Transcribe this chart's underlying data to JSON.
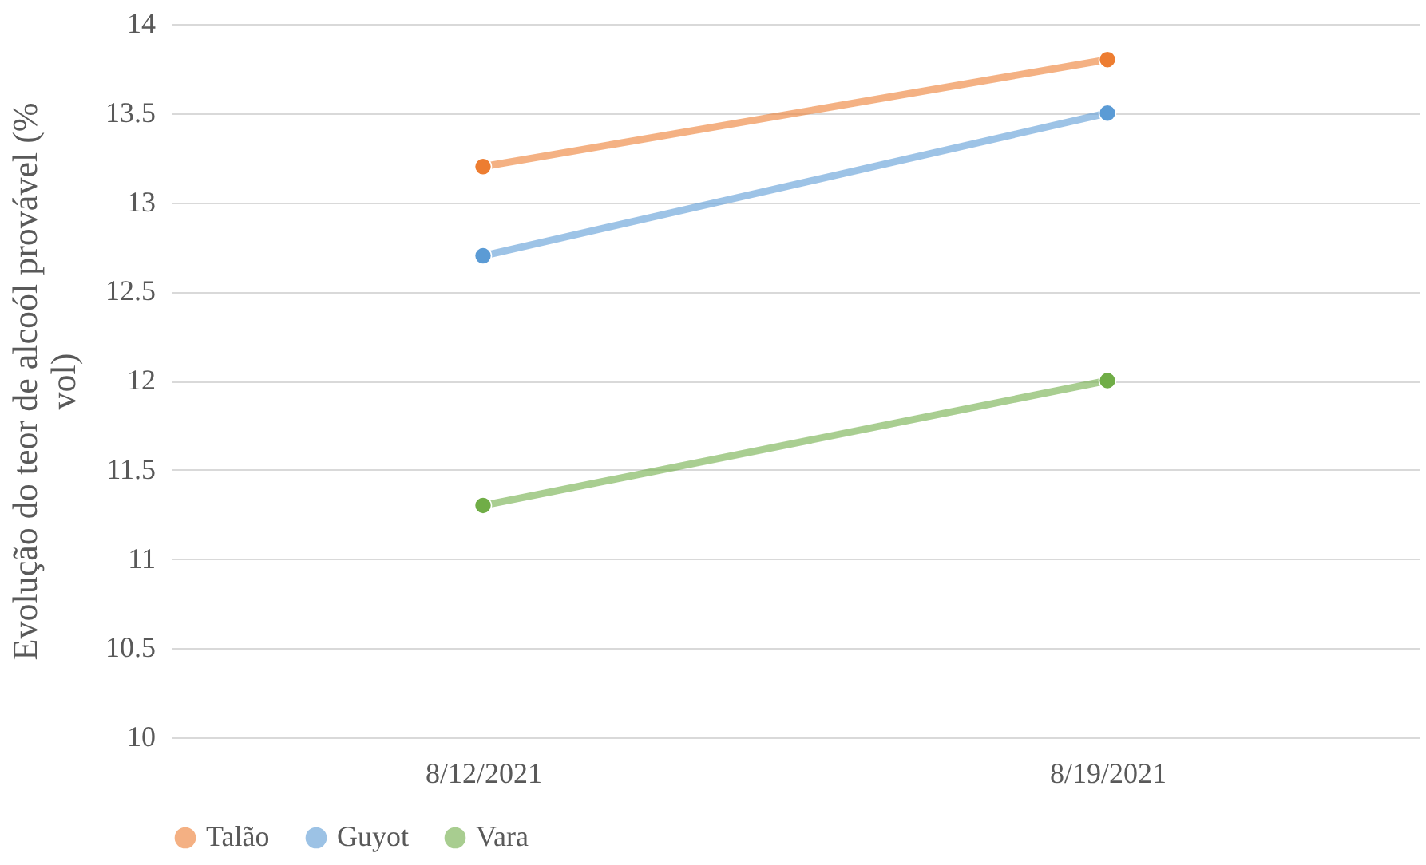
{
  "chart_data": {
    "type": "line",
    "ylabel": "Evolução do teor de alcoól provável (% vol)",
    "categories": [
      "8/12/2021",
      "8/19/2021"
    ],
    "series": [
      {
        "name": "Talão",
        "color": "#ed7d31",
        "values": [
          13.2,
          13.8
        ]
      },
      {
        "name": "Guyot",
        "color": "#5b9bd5",
        "values": [
          12.7,
          13.5
        ]
      },
      {
        "name": "Vara",
        "color": "#70ad47",
        "values": [
          11.3,
          12.0
        ]
      }
    ],
    "ylim": [
      10,
      14
    ],
    "yticks": [
      10,
      10.5,
      11,
      11.5,
      12,
      12.5,
      13,
      13.5,
      14
    ],
    "grid": "y",
    "legend": "bottom",
    "marker": "circle",
    "line_style": "solid"
  }
}
